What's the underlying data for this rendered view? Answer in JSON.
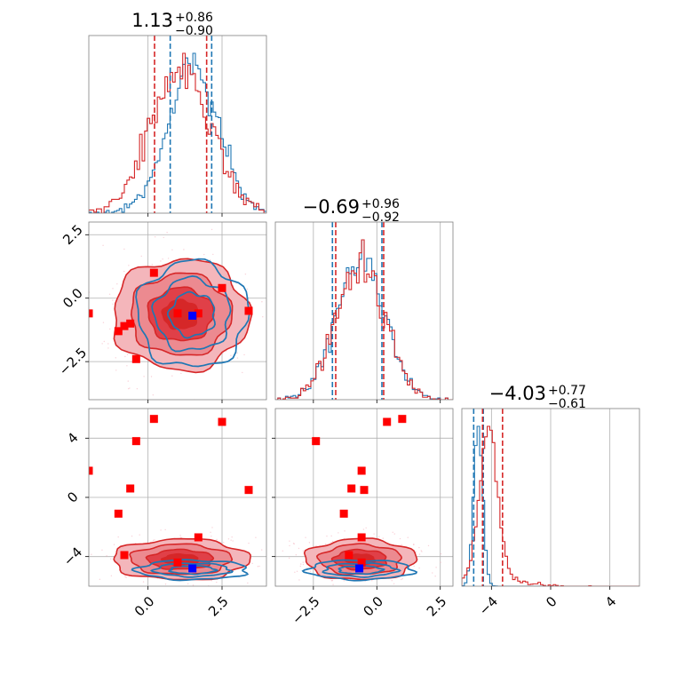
{
  "chart_data": {
    "type": "corner",
    "colors": {
      "blue": "#1f77b4",
      "red": "#d62728",
      "marker_red": "#ff0000",
      "marker_blue": "#0000ff"
    },
    "parameters": [
      {
        "title_value": "1.13",
        "title_plus": "+0.86",
        "title_minus": "−0.90",
        "range": [
          -2.0,
          4.0
        ],
        "ticks": [
          0.0,
          2.5
        ],
        "tick_labels": [
          "0.0",
          "2.5"
        ],
        "quantiles_blue": [
          0.75,
          2.15
        ],
        "quantiles_red": [
          0.22,
          1.98
        ]
      },
      {
        "title_value": "−0.69",
        "title_plus": "+0.96",
        "title_minus": "−0.92",
        "range": [
          -4.0,
          3.0
        ],
        "ticks": [
          -2.5,
          0.0,
          2.5
        ],
        "tick_labels": [
          "−2.5",
          "0.0",
          "2.5"
        ],
        "quantiles_blue": [
          -1.75,
          0.2
        ],
        "quantiles_red": [
          -1.62,
          0.27
        ]
      },
      {
        "title_value": "−4.03",
        "title_plus": "+0.77",
        "title_minus": "−0.61",
        "range": [
          -6.0,
          6.0
        ],
        "ticks": [
          -4,
          0,
          4
        ],
        "tick_labels": [
          "−4",
          "0",
          "4"
        ],
        "quantiles_blue": [
          -5.2,
          -4.55
        ],
        "quantiles_red": [
          -4.6,
          -3.25
        ]
      }
    ],
    "markers_red": [
      [
        -2.0,
        -0.6,
        1.8
      ],
      [
        0.2,
        1.0,
        5.3
      ],
      [
        2.5,
        0.4,
        5.1
      ],
      [
        3.4,
        -0.5,
        0.5
      ],
      [
        -0.4,
        -2.4,
        3.8
      ],
      [
        -0.6,
        -1.0,
        0.6
      ],
      [
        -1.0,
        -1.3,
        -1.1
      ],
      [
        -0.8,
        -1.1,
        -3.9
      ],
      [
        1.0,
        -0.6,
        -4.4
      ],
      [
        1.7,
        -0.6,
        -2.7
      ]
    ],
    "marker_blue": [
      1.5,
      -0.69,
      -4.8
    ],
    "series": [
      {
        "name": "",
        "color": "#1f77b4",
        "centers": [
          1.5,
          -0.65,
          -4.9
        ],
        "sigmas": [
          0.85,
          0.95,
          0.3
        ]
      },
      {
        "name": "",
        "color": "#d62728",
        "centers": [
          1.1,
          -0.65,
          -4.2
        ],
        "sigmas": [
          1.0,
          0.95,
          0.6
        ]
      }
    ]
  }
}
